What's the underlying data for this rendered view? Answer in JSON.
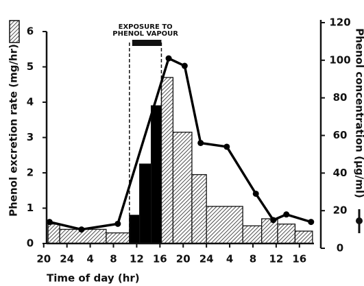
{
  "chart_data": {
    "type": "histogram",
    "x_label": "Time of day (hr)",
    "y_label": "Phenol excretion rate (mg/hr)",
    "y2_label": "Phenol concentration (µg/ml)",
    "bins": [
      20.75,
      22.75,
      30.75,
      34.75,
      36.5,
      38.5,
      40.25,
      42.25,
      45.5,
      48,
      54.25,
      57.5,
      60.25,
      63.25,
      66.25
    ],
    "values": [
      0.55,
      0.4,
      0.3,
      0.8,
      2.25,
      3.9,
      4.7,
      3.15,
      1.95,
      1.05,
      0.5,
      0.7,
      0.55,
      0.35
    ],
    "bar_fills": [
      "hatch",
      "hatch",
      "hatch",
      "#000000",
      "#000000",
      "#000000",
      "hatch",
      "hatch",
      "hatch",
      "hatch",
      "hatch",
      "hatch",
      "hatch",
      "hatch"
    ],
    "series": [
      {
        "type": "line",
        "axis": "y2",
        "color": "#000000",
        "x": [
          21,
          26.5,
          32.75,
          41.5,
          44.25,
          47,
          51.5,
          56.5,
          59.5,
          61.75,
          66
        ],
        "values": [
          14,
          10,
          13,
          101,
          97,
          56,
          54,
          29,
          15,
          18,
          14
        ]
      }
    ],
    "xlim": [
      20.5,
      66.5
    ],
    "ylim": [
      0,
      6
    ],
    "y2lim": [
      0,
      120
    ],
    "xticks": [
      20,
      24,
      {
        "value": 28,
        "label": "4"
      },
      {
        "value": 32,
        "label": "8"
      },
      {
        "value": 36,
        "label": "12"
      },
      {
        "value": 40,
        "label": "16"
      },
      {
        "value": 44,
        "label": "20"
      },
      {
        "value": 48,
        "label": "24"
      },
      {
        "value": 52,
        "label": "4"
      },
      {
        "value": 56,
        "label": "8"
      },
      {
        "value": 60,
        "label": "12"
      },
      {
        "value": 64,
        "label": "16"
      }
    ],
    "yticks": [
      0,
      1,
      2,
      3,
      4,
      5,
      6
    ],
    "y2ticks": [
      0,
      20,
      40,
      60,
      80,
      100,
      120
    ],
    "annotation": {
      "lines": [
        "EXPOSURE TO",
        "PHENOL VAPOUR"
      ],
      "x": [
        34.75,
        40.25
      ]
    }
  }
}
